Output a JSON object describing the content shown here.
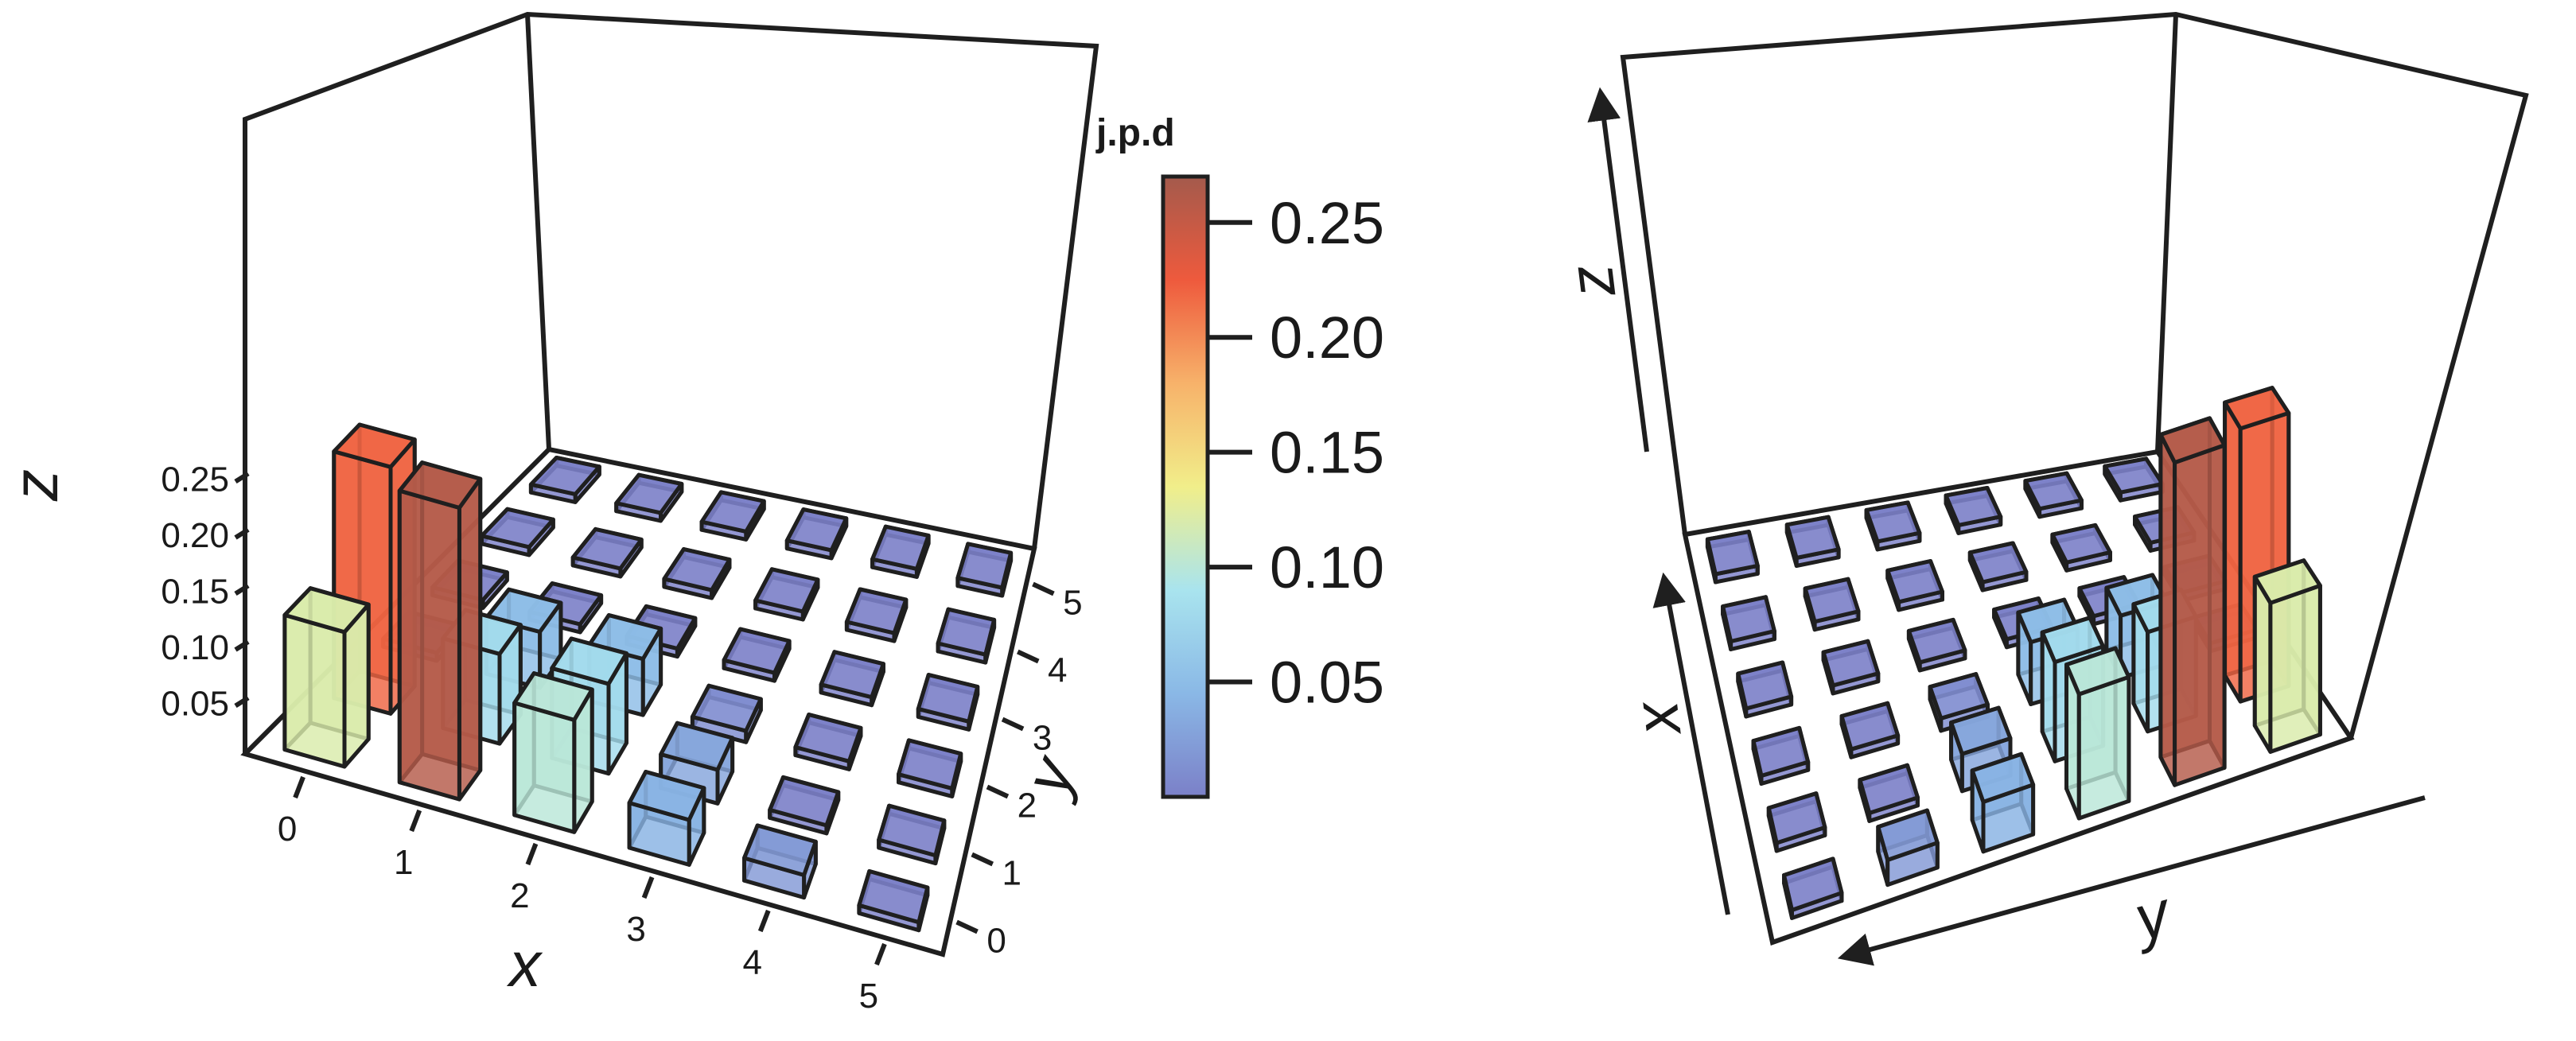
{
  "colors": {
    "scale": [
      "#7b80c8",
      "#8ab8e6",
      "#a9e4ee",
      "#f1ee8a",
      "#f7b26a",
      "#ee5a3d",
      "#a45a4c"
    ],
    "edge": "#1f1f1f",
    "background": "#ffffff"
  },
  "chart_data": [
    {
      "type": "bar3d",
      "view": "front-left",
      "x_ticks": [
        "0",
        "1",
        "2",
        "3",
        "4",
        "5"
      ],
      "y_ticks": [
        "0",
        "1",
        "2",
        "3",
        "4",
        "5"
      ],
      "z_ticks": [
        "0.05",
        "0.10",
        "0.15",
        "0.20",
        "0.25"
      ],
      "xlabel": "x",
      "ylabel": "y",
      "zlabel": "z",
      "zlim": [
        0,
        0.27
      ],
      "values": [
        [
          0.12,
          0.22,
          0.0,
          0.0,
          0.0,
          0.0
        ],
        [
          0.26,
          0.08,
          0.05,
          0.0,
          0.0,
          0.0
        ],
        [
          0.1,
          0.08,
          0.05,
          0.0,
          0.0,
          0.0
        ],
        [
          0.04,
          0.03,
          0.01,
          0.0,
          0.0,
          0.0
        ],
        [
          0.02,
          0.0,
          0.0,
          0.0,
          0.0,
          0.0
        ],
        [
          0.0,
          0.0,
          0.0,
          0.0,
          0.0,
          0.0
        ]
      ]
    },
    {
      "type": "bar3d",
      "view": "rotated",
      "xlabel": "x",
      "ylabel": "y",
      "zlabel": "z"
    }
  ],
  "colorbar": {
    "title": "j.p.d",
    "ticks": [
      "0.05",
      "0.10",
      "0.15",
      "0.20",
      "0.25"
    ]
  }
}
